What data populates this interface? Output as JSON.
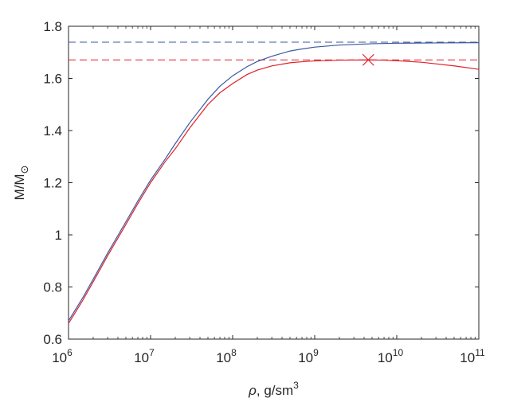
{
  "chart_data": {
    "type": "line",
    "x_scale": "log",
    "xlim": [
      1000000.0,
      100000000000.0
    ],
    "ylim": [
      0.6,
      1.8
    ],
    "xlabel_symbol": "ρ",
    "xlabel_text": ", g/sm",
    "xlabel_sup": "3",
    "ylabel_main": "M/M",
    "ylabel_sub": "⊙",
    "x_ticks": [
      {
        "base": "10",
        "exp": "6",
        "value": 1000000.0
      },
      {
        "base": "10",
        "exp": "7",
        "value": 10000000.0
      },
      {
        "base": "10",
        "exp": "8",
        "value": 100000000.0
      },
      {
        "base": "10",
        "exp": "9",
        "value": 1000000000.0
      },
      {
        "base": "10",
        "exp": "10",
        "value": 10000000000.0
      },
      {
        "base": "10",
        "exp": "11",
        "value": 100000000000.0
      }
    ],
    "y_ticks": [
      {
        "label": "0.6",
        "value": 0.6
      },
      {
        "label": "0.8",
        "value": 0.8
      },
      {
        "label": "1",
        "value": 1.0
      },
      {
        "label": "1.2",
        "value": 1.2
      },
      {
        "label": "1.4",
        "value": 1.4
      },
      {
        "label": "1.6",
        "value": 1.6
      },
      {
        "label": "1.8",
        "value": 1.8
      }
    ],
    "series": [
      {
        "color": "#3a5a9e",
        "style": "solid",
        "points": [
          [
            1000000.0,
            0.67
          ],
          [
            1500000.0,
            0.76
          ],
          [
            2000000.0,
            0.83
          ],
          [
            3000000.0,
            0.93
          ],
          [
            5000000.0,
            1.05
          ],
          [
            7000000.0,
            1.13
          ],
          [
            10000000.0,
            1.21
          ],
          [
            15000000.0,
            1.29
          ],
          [
            20000000.0,
            1.35
          ],
          [
            30000000.0,
            1.43
          ],
          [
            50000000.0,
            1.52
          ],
          [
            70000000.0,
            1.57
          ],
          [
            100000000.0,
            1.61
          ],
          [
            150000000.0,
            1.645
          ],
          [
            200000000.0,
            1.665
          ],
          [
            300000000.0,
            1.685
          ],
          [
            500000000.0,
            1.705
          ],
          [
            700000000.0,
            1.713
          ],
          [
            1000000000.0,
            1.72
          ],
          [
            2000000000.0,
            1.728
          ],
          [
            5000000000.0,
            1.733
          ],
          [
            10000000000.0,
            1.735
          ],
          [
            30000000000.0,
            1.736
          ],
          [
            100000000000.0,
            1.737
          ]
        ]
      },
      {
        "color": "#e0202a",
        "style": "solid",
        "points": [
          [
            1000000.0,
            0.66
          ],
          [
            1500000.0,
            0.75
          ],
          [
            2000000.0,
            0.82
          ],
          [
            3000000.0,
            0.92
          ],
          [
            5000000.0,
            1.04
          ],
          [
            7000000.0,
            1.12
          ],
          [
            10000000.0,
            1.2
          ],
          [
            15000000.0,
            1.28
          ],
          [
            20000000.0,
            1.33
          ],
          [
            30000000.0,
            1.41
          ],
          [
            50000000.0,
            1.5
          ],
          [
            70000000.0,
            1.545
          ],
          [
            100000000.0,
            1.58
          ],
          [
            150000000.0,
            1.615
          ],
          [
            200000000.0,
            1.632
          ],
          [
            300000000.0,
            1.648
          ],
          [
            500000000.0,
            1.66
          ],
          [
            700000000.0,
            1.664
          ],
          [
            1000000000.0,
            1.667
          ],
          [
            2000000000.0,
            1.67
          ],
          [
            4500000000.0,
            1.671
          ],
          [
            7000000000.0,
            1.67
          ],
          [
            10000000000.0,
            1.668
          ],
          [
            20000000000.0,
            1.662
          ],
          [
            30000000000.0,
            1.656
          ],
          [
            50000000000.0,
            1.648
          ],
          [
            100000000000.0,
            1.635
          ]
        ]
      }
    ],
    "reference_lines": [
      {
        "y": 1.739,
        "color": "#3a5a9e",
        "style": "dashed"
      },
      {
        "y": 1.671,
        "color": "#e0202a",
        "style": "dashed"
      }
    ],
    "markers": [
      {
        "x": 4500000000.0,
        "y": 1.671,
        "symbol": "x",
        "color": "#e0202a"
      }
    ],
    "grid": false,
    "legend": false
  }
}
